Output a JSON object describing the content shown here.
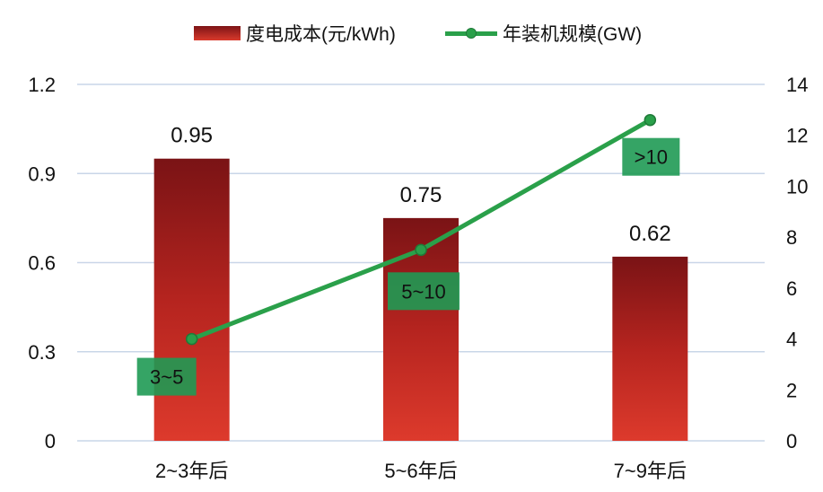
{
  "chart_data": {
    "type": "bar",
    "categories": [
      "2~3年后",
      "5~6年后",
      "7~9年后"
    ],
    "series": [
      {
        "name": "度电成本(元/kWh)",
        "type": "bar",
        "axis": "left",
        "values": [
          0.95,
          0.75,
          0.62
        ],
        "data_labels": [
          "0.95",
          "0.75",
          "0.62"
        ],
        "color": "#c62a26"
      },
      {
        "name": "年装机规模(GW)",
        "type": "line",
        "axis": "right",
        "values": [
          4,
          7.5,
          12.6
        ],
        "data_labels": [
          "3~5",
          "5~10",
          ">10"
        ],
        "color": "#2aa04a"
      }
    ],
    "y_left": {
      "ylim": [
        0,
        1.2
      ],
      "ticks": [
        "0",
        "0.3",
        "0.6",
        "0.9",
        "1.2"
      ]
    },
    "y_right": {
      "ylim": [
        0,
        14
      ],
      "ticks": [
        "0",
        "2",
        "4",
        "6",
        "8",
        "10",
        "12",
        "14"
      ]
    },
    "grid": true,
    "legend_position": "top-center"
  }
}
